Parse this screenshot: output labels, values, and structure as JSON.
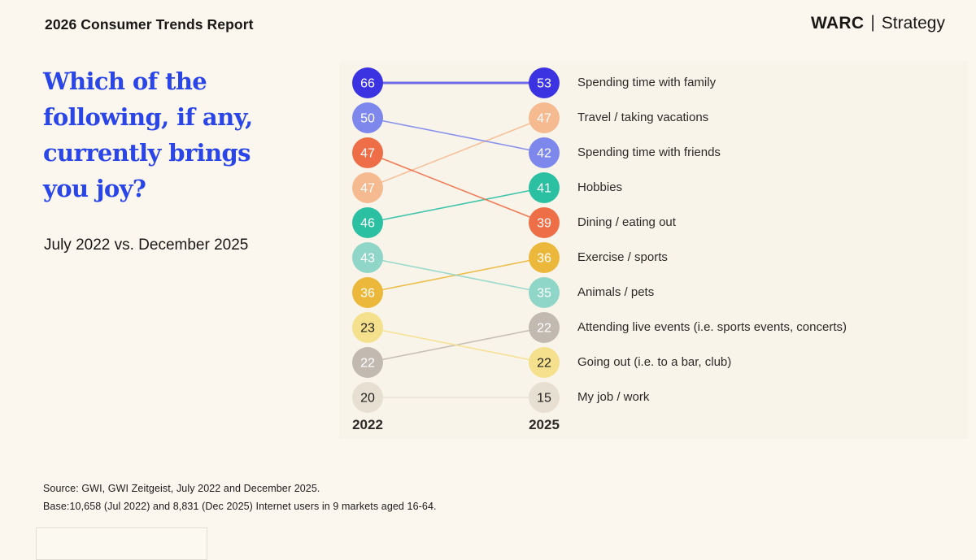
{
  "page": {
    "report_title": "2026 Consumer Trends Report",
    "brand": {
      "name": "WARC",
      "divider": "|",
      "suffix": "Strategy"
    },
    "accent_blue": "#2a46e8",
    "background": "#fbf7ee"
  },
  "question": {
    "title_lines": [
      "Which of the",
      "following, if any,",
      "currently brings",
      "you joy?"
    ],
    "title_full": "Which of the following, if any, currently brings you joy?",
    "subtitle": "July 2022 vs. December 2025"
  },
  "chart_data": {
    "type": "slope",
    "columns": [
      "2022",
      "2025"
    ],
    "value_unit": "percent",
    "series": [
      {
        "label": "Spending time with family",
        "values": [
          66,
          53
        ],
        "rows": [
          0,
          0
        ],
        "color": "#3b33e2",
        "value_color": "#ffffff",
        "line_emphasis": true
      },
      {
        "label": "Travel / taking vacations",
        "values": [
          47,
          47
        ],
        "rows": [
          3,
          1
        ],
        "color": "#f6ba90",
        "value_color": "#ffffff",
        "line_emphasis": false
      },
      {
        "label": "Spending time with friends",
        "values": [
          50,
          42
        ],
        "rows": [
          1,
          2
        ],
        "color": "#7d87ec",
        "value_color": "#ffffff",
        "line_emphasis": false
      },
      {
        "label": "Hobbies",
        "values": [
          46,
          41
        ],
        "rows": [
          4,
          3
        ],
        "color": "#2cc0a3",
        "value_color": "#ffffff",
        "line_emphasis": false
      },
      {
        "label": "Dining / eating out",
        "values": [
          47,
          39
        ],
        "rows": [
          2,
          4
        ],
        "color": "#ee6e47",
        "value_color": "#ffffff",
        "line_emphasis": false
      },
      {
        "label": "Exercise / sports",
        "values": [
          36,
          36
        ],
        "rows": [
          6,
          5
        ],
        "color": "#ecb83c",
        "value_color": "#ffffff",
        "line_emphasis": false
      },
      {
        "label": "Animals / pets",
        "values": [
          43,
          35
        ],
        "rows": [
          5,
          6
        ],
        "color": "#8fd6c8",
        "value_color": "#ffffff",
        "line_emphasis": false
      },
      {
        "label": "Attending live events (i.e. sports events, concerts)",
        "values": [
          22,
          22
        ],
        "rows": [
          8,
          7
        ],
        "color": "#c2bab0",
        "value_color": "#ffffff",
        "line_emphasis": false
      },
      {
        "label": "Going out (i.e. to a bar, club)",
        "values": [
          23,
          22
        ],
        "rows": [
          7,
          8
        ],
        "color": "#f5e08d",
        "value_color": "#23211e",
        "line_emphasis": false
      },
      {
        "label": "My job / work",
        "values": [
          20,
          15
        ],
        "rows": [
          9,
          9
        ],
        "color": "#e6dfd2",
        "value_color": "#23211e",
        "line_emphasis": false
      }
    ]
  },
  "footer": {
    "source": "Source: GWI, GWI Zeitgeist, July 2022 and December 2025.",
    "base": "Base:10,658 (Jul 2022) and 8,831 (Dec 2025) Internet users in 9 markets aged 16-64."
  }
}
